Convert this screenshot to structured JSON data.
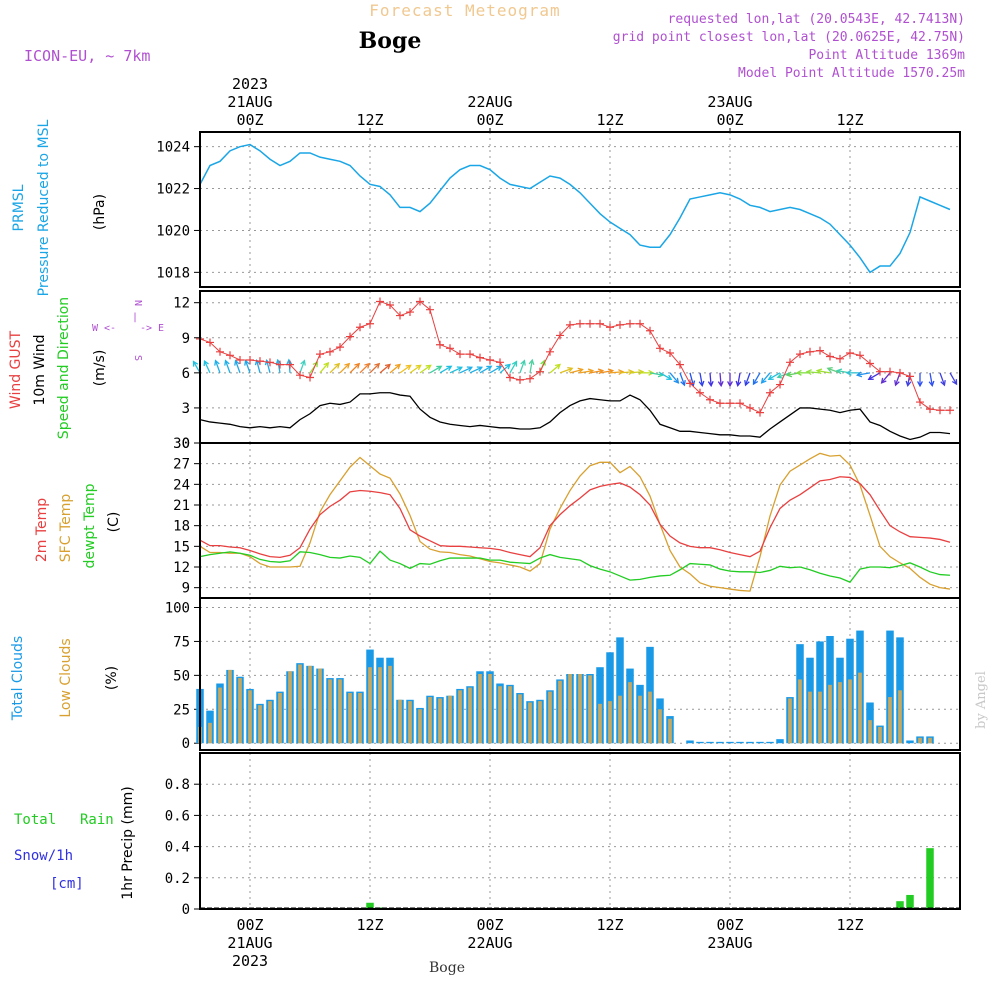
{
  "header": {
    "title": "Forecast Meteogram",
    "location": "Boge",
    "model": "ICON-EU, ~ 7km",
    "requested": "requested lon,lat (20.0543E, 42.7413N)",
    "grid_point": "grid point closest lon,lat (20.0625E, 42.75N)",
    "point_altitude": "Point Altitude 1369m",
    "model_altitude": "Model Point Altitude 1570.25m",
    "footer": "Boge",
    "watermark": "by Angel"
  },
  "time_axis": {
    "top_labels": [
      {
        "hour": 0,
        "lines": [
          "2023",
          "21AUG",
          "00Z"
        ]
      },
      {
        "hour": 12,
        "lines": [
          "12Z"
        ]
      },
      {
        "hour": 24,
        "lines": [
          "22AUG",
          "00Z"
        ]
      },
      {
        "hour": 36,
        "lines": [
          "12Z"
        ]
      },
      {
        "hour": 48,
        "lines": [
          "23AUG",
          "00Z"
        ]
      },
      {
        "hour": 60,
        "lines": [
          "12Z"
        ]
      }
    ],
    "bottom_labels": [
      {
        "hour": 0,
        "lines": [
          "00Z",
          "21AUG",
          "2023"
        ]
      },
      {
        "hour": 12,
        "lines": [
          "12Z"
        ]
      },
      {
        "hour": 24,
        "lines": [
          "00Z",
          "22AUG"
        ]
      },
      {
        "hour": 36,
        "lines": [
          "12Z"
        ]
      },
      {
        "hour": 48,
        "lines": [
          "00Z",
          "23AUG"
        ]
      },
      {
        "hour": 60,
        "lines": [
          "12Z"
        ]
      }
    ],
    "xlim": [
      -5,
      71
    ]
  },
  "panel_labels": {
    "pressure": {
      "title1": "PRMSL",
      "title2": "Pressure Reduced to MSL",
      "unit": "(hPa)"
    },
    "wind": {
      "gust": "Wind GUST",
      "wind10": "10m Wind",
      "speed_dir": "Speed and Direction",
      "unit": "(m/s)",
      "compass_w": "W <-",
      "compass_e": "-> E",
      "compass_n": "N",
      "compass_s": "S",
      "compass_mid": "|"
    },
    "temp": {
      "t2m": "2m Temp",
      "sfc": "SFC Temp",
      "dewpt": "dewpt Temp",
      "unit": "(C)"
    },
    "clouds": {
      "total": "Total Clouds",
      "low": "Low Clouds",
      "unit": "(%)"
    },
    "precip": {
      "total": "Total",
      "rain": "Rain",
      "snow": "Snow/1h",
      "snow_unit": "[cm]",
      "ylabel": "1hr Precip (mm)"
    }
  },
  "colors": {
    "pressure": "#1aa6e6",
    "gust": "#e84040",
    "wind": "#000000",
    "temp2m": "#e84040",
    "sfc": "#d8a030",
    "dewpt": "#22cc22",
    "total_clouds": "#1a9ae6",
    "low_clouds": "#c8a860",
    "rain": "#22cc22",
    "snow": "#3030e0",
    "title": "#f0c890",
    "meta": "#b050d0"
  },
  "chart_data": [
    {
      "type": "line",
      "name": "PRMSL",
      "ylim": [
        1017.3,
        1024.7
      ],
      "yticks": [
        1018,
        1020,
        1022,
        1024
      ],
      "x": [
        -5,
        -4,
        -3,
        -2,
        -1,
        0,
        1,
        2,
        3,
        4,
        5,
        6,
        7,
        8,
        9,
        10,
        11,
        12,
        13,
        14,
        15,
        16,
        17,
        18,
        19,
        20,
        21,
        22,
        23,
        24,
        25,
        26,
        27,
        28,
        29,
        30,
        31,
        32,
        33,
        34,
        35,
        36,
        37,
        38,
        39,
        40,
        41,
        42,
        43,
        44,
        45,
        46,
        47,
        48,
        49,
        50,
        51,
        52,
        53,
        54,
        55,
        56,
        57,
        58,
        59,
        60,
        61,
        62,
        63,
        64,
        65,
        66,
        67,
        68,
        69,
        70
      ],
      "values": [
        1022.2,
        1023.1,
        1023.3,
        1023.8,
        1024.0,
        1024.1,
        1023.8,
        1023.4,
        1023.1,
        1023.3,
        1023.7,
        1023.7,
        1023.5,
        1023.4,
        1023.3,
        1023.1,
        1022.6,
        1022.2,
        1022.1,
        1021.7,
        1021.1,
        1021.1,
        1020.9,
        1021.3,
        1021.9,
        1022.5,
        1022.9,
        1023.1,
        1023.1,
        1022.9,
        1022.5,
        1022.2,
        1022.1,
        1022.0,
        1022.3,
        1022.6,
        1022.5,
        1022.2,
        1021.8,
        1021.3,
        1020.8,
        1020.4,
        1020.1,
        1019.8,
        1019.3,
        1019.2,
        1019.2,
        1019.8,
        1020.6,
        1021.5,
        1021.6,
        1021.7,
        1021.8,
        1021.7,
        1021.5,
        1021.2,
        1021.1,
        1020.9,
        1021.0,
        1021.1,
        1021.0,
        1020.8,
        1020.6,
        1020.3,
        1019.8,
        1019.3,
        1018.7,
        1018.0,
        1018.3,
        1018.3,
        1018.9,
        1019.9,
        1021.6,
        1021.4,
        1021.2,
        1021.0
      ]
    },
    {
      "type": "line",
      "name": "Wind",
      "ylim": [
        0,
        13
      ],
      "yticks": [
        0,
        3,
        6,
        9,
        12
      ],
      "x": [
        -5,
        -4,
        -3,
        -2,
        -1,
        0,
        1,
        2,
        3,
        4,
        5,
        6,
        7,
        8,
        9,
        10,
        11,
        12,
        13,
        14,
        15,
        16,
        17,
        18,
        19,
        20,
        21,
        22,
        23,
        24,
        25,
        26,
        27,
        28,
        29,
        30,
        31,
        32,
        33,
        34,
        35,
        36,
        37,
        38,
        39,
        40,
        41,
        42,
        43,
        44,
        45,
        46,
        47,
        48,
        49,
        50,
        51,
        52,
        53,
        54,
        55,
        56,
        57,
        58,
        59,
        60,
        61,
        62,
        63,
        64,
        65,
        66,
        67,
        68,
        69,
        70
      ],
      "gust": [
        8.9,
        8.6,
        7.8,
        7.5,
        7.1,
        7.1,
        7.0,
        6.9,
        6.7,
        6.7,
        5.8,
        5.6,
        7.6,
        7.8,
        8.2,
        9.1,
        9.9,
        10.2,
        12.1,
        11.8,
        10.9,
        11.2,
        12.1,
        11.4,
        8.4,
        8.1,
        7.6,
        7.6,
        7.3,
        7.1,
        6.9,
        5.6,
        5.4,
        5.5,
        6.1,
        7.8,
        9.2,
        10.1,
        10.2,
        10.2,
        10.2,
        9.9,
        10.1,
        10.2,
        10.2,
        9.6,
        8.1,
        7.7,
        6.7,
        5.1,
        4.3,
        3.7,
        3.4,
        3.4,
        3.4,
        3.0,
        2.6,
        4.3,
        5.0,
        6.9,
        7.6,
        7.8,
        7.9,
        7.4,
        7.2,
        7.7,
        7.5,
        6.8,
        6.1,
        6.1,
        6.0,
        5.7,
        3.5,
        2.9,
        2.8,
        2.8
      ],
      "wind": [
        2.0,
        1.8,
        1.7,
        1.6,
        1.4,
        1.3,
        1.4,
        1.3,
        1.4,
        1.3,
        2.0,
        2.5,
        3.2,
        3.4,
        3.3,
        3.5,
        4.2,
        4.2,
        4.3,
        4.3,
        4.1,
        4.0,
        2.9,
        2.2,
        1.8,
        1.6,
        1.5,
        1.4,
        1.5,
        1.4,
        1.3,
        1.3,
        1.2,
        1.2,
        1.3,
        1.8,
        2.6,
        3.2,
        3.6,
        3.8,
        3.7,
        3.6,
        3.6,
        4.1,
        3.7,
        2.8,
        1.6,
        1.3,
        1.0,
        1.0,
        0.9,
        0.8,
        0.7,
        0.7,
        0.6,
        0.6,
        0.5,
        1.2,
        1.8,
        2.4,
        3.0,
        3.0,
        2.9,
        2.8,
        2.6,
        2.8,
        2.9,
        1.8,
        1.5,
        1.0,
        0.6,
        0.3,
        0.5,
        0.9,
        0.9,
        0.8
      ],
      "arrows": {
        "x": [
          -5,
          -4,
          -3,
          -2,
          -1,
          0,
          1,
          2,
          3,
          4,
          5,
          6,
          7,
          8,
          9,
          10,
          11,
          12,
          13,
          14,
          15,
          16,
          17,
          18,
          19,
          20,
          21,
          22,
          23,
          24,
          25,
          26,
          27,
          28,
          29,
          30,
          31,
          32,
          33,
          34,
          35,
          36,
          37,
          38,
          39,
          40,
          41,
          42,
          43,
          44,
          45,
          46,
          47,
          48,
          49,
          50,
          51,
          52,
          53,
          54,
          55,
          56,
          57,
          58,
          59,
          60,
          61,
          62,
          63,
          64,
          65,
          66,
          67,
          68,
          69,
          70
        ],
        "dir_deg": [
          150,
          155,
          160,
          160,
          160,
          160,
          165,
          165,
          170,
          175,
          200,
          215,
          220,
          225,
          225,
          225,
          225,
          225,
          230,
          230,
          235,
          235,
          235,
          240,
          240,
          245,
          245,
          245,
          240,
          240,
          230,
          210,
          200,
          190,
          200,
          230,
          250,
          255,
          260,
          260,
          260,
          265,
          265,
          265,
          270,
          280,
          300,
          320,
          340,
          345,
          350,
          355,
          355,
          0,
          10,
          20,
          30,
          40,
          60,
          70,
          80,
          90,
          95,
          100,
          110,
          100,
          90,
          80,
          60,
          40,
          20,
          10,
          0,
          350,
          340,
          330
        ],
        "colors": [
          "#20c0e0",
          "#20c0e0",
          "#20b0e8",
          "#20b0e8",
          "#20a8e8",
          "#20a8e8",
          "#20a8e8",
          "#20a8e8",
          "#20b0e8",
          "#20b0e8",
          "#40d0c0",
          "#90e040",
          "#c0e020",
          "#e0c020",
          "#f0a020",
          "#f08020",
          "#f08030",
          "#e07030",
          "#e06030",
          "#f0a020",
          "#f0c020",
          "#e0d020",
          "#c0e020",
          "#40d0a0",
          "#20c0e0",
          "#20c0e0",
          "#20b0e8",
          "#20b0e8",
          "#20b0e8",
          "#20b0e8",
          "#20c0e0",
          "#30d0c0",
          "#40d0b0",
          "#50d0a0",
          "#70e040",
          "#c0e020",
          "#e0c020",
          "#f0a020",
          "#f0a020",
          "#f09020",
          "#f09020",
          "#f0a020",
          "#e0c020",
          "#d0d020",
          "#c0e020",
          "#40d0a0",
          "#20c0e0",
          "#2090f0",
          "#2070f0",
          "#2050f0",
          "#3040e8",
          "#4030e0",
          "#6030d0",
          "#6030d0",
          "#4030e0",
          "#3040e8",
          "#2070f0",
          "#20a0f0",
          "#20c0e0",
          "#40d0b0",
          "#60d060",
          "#80e040",
          "#90e040",
          "#a0e030",
          "#60d080",
          "#40d0b0",
          "#30c0d0",
          "#2090f0",
          "#4030e0",
          "#6030d0",
          "#6030d0",
          "#4040e0",
          "#3050f0",
          "#3050f0",
          "#4040e0",
          "#4040e0"
        ]
      }
    },
    {
      "type": "line",
      "name": "Temperature",
      "ylim": [
        7.5,
        30
      ],
      "yticks": [
        9,
        12,
        15,
        18,
        21,
        24,
        27,
        30
      ],
      "x": [
        -5,
        -4,
        -3,
        -2,
        -1,
        0,
        1,
        2,
        3,
        4,
        5,
        6,
        7,
        8,
        9,
        10,
        11,
        12,
        13,
        14,
        15,
        16,
        17,
        18,
        19,
        20,
        21,
        22,
        23,
        24,
        25,
        26,
        27,
        28,
        29,
        30,
        31,
        32,
        33,
        34,
        35,
        36,
        37,
        38,
        39,
        40,
        41,
        42,
        43,
        44,
        45,
        46,
        47,
        48,
        49,
        50,
        51,
        52,
        53,
        54,
        55,
        56,
        57,
        58,
        59,
        60,
        61,
        62,
        63,
        64,
        65,
        66,
        67,
        68,
        69,
        70
      ],
      "temp2m": [
        15.9,
        15.1,
        15.1,
        14.9,
        14.8,
        14.4,
        13.9,
        13.5,
        13.4,
        13.7,
        14.8,
        17.5,
        19.6,
        20.8,
        21.7,
        22.9,
        23.1,
        23.0,
        22.8,
        22.5,
        20.5,
        17.4,
        16.5,
        15.8,
        15.1,
        15.0,
        15.0,
        14.9,
        14.8,
        14.7,
        14.5,
        14.1,
        13.8,
        13.5,
        14.8,
        18.0,
        19.6,
        20.9,
        22.0,
        23.2,
        23.7,
        24.0,
        24.2,
        23.6,
        22.5,
        21.0,
        18.2,
        16.5,
        15.5,
        15.0,
        14.8,
        14.8,
        14.5,
        14.1,
        13.8,
        13.5,
        14.3,
        17.7,
        20.5,
        21.7,
        22.5,
        23.5,
        24.5,
        24.7,
        25.1,
        25.0,
        24.1,
        22.5,
        20.2,
        18.0,
        17.1,
        16.4,
        16.3,
        16.2,
        16.0,
        15.6
      ],
      "sfc": [
        15.0,
        14.1,
        14.1,
        14.0,
        14.0,
        13.5,
        12.5,
        12.0,
        12.0,
        12.0,
        12.1,
        15.5,
        20.0,
        22.5,
        24.5,
        26.5,
        27.9,
        26.7,
        25.5,
        24.9,
        22.6,
        19.5,
        15.7,
        14.6,
        14.2,
        14.1,
        13.8,
        13.6,
        13.2,
        12.8,
        12.6,
        12.3,
        12.0,
        11.4,
        12.5,
        17.5,
        20.5,
        23.1,
        25.2,
        26.7,
        27.2,
        27.2,
        25.7,
        26.6,
        25.1,
        22.3,
        18.2,
        14.4,
        12.0,
        11.0,
        9.7,
        9.2,
        9.0,
        8.8,
        8.6,
        8.5,
        13.5,
        19.4,
        23.9,
        25.9,
        26.8,
        27.7,
        28.5,
        28.1,
        28.2,
        26.8,
        23.9,
        19.5,
        15.0,
        13.5,
        12.6,
        11.8,
        10.5,
        9.5,
        9.0,
        8.8
      ],
      "dewpt": [
        13.5,
        13.8,
        14.0,
        14.2,
        14.0,
        13.7,
        13.1,
        12.8,
        12.7,
        12.9,
        14.2,
        14.1,
        13.8,
        13.4,
        13.3,
        13.6,
        13.4,
        12.5,
        14.3,
        13.0,
        12.5,
        11.8,
        12.5,
        12.4,
        12.9,
        13.3,
        13.3,
        13.3,
        13.3,
        13.0,
        13.0,
        12.7,
        12.6,
        12.5,
        13.3,
        13.8,
        13.4,
        13.2,
        13.0,
        12.2,
        11.7,
        11.3,
        10.7,
        10.1,
        10.2,
        10.5,
        10.7,
        10.8,
        11.6,
        12.5,
        12.4,
        12.3,
        11.7,
        11.4,
        11.3,
        11.3,
        11.2,
        11.5,
        12.1,
        11.9,
        12.0,
        11.6,
        11.1,
        10.7,
        10.4,
        9.8,
        11.7,
        12.0,
        12.0,
        11.9,
        12.2,
        12.6,
        12.0,
        11.3,
        10.9,
        10.8
      ]
    },
    {
      "type": "bar",
      "name": "Clouds",
      "ylim": [
        -5,
        107
      ],
      "yticks": [
        0,
        25,
        50,
        75,
        100
      ],
      "x": [
        -5,
        -4,
        -3,
        -2,
        -1,
        0,
        1,
        2,
        3,
        4,
        5,
        6,
        7,
        8,
        9,
        10,
        11,
        12,
        13,
        14,
        15,
        16,
        17,
        18,
        19,
        20,
        21,
        22,
        23,
        24,
        25,
        26,
        27,
        28,
        29,
        30,
        31,
        32,
        33,
        34,
        35,
        36,
        37,
        38,
        39,
        40,
        41,
        42,
        43,
        44,
        45,
        46,
        47,
        48,
        49,
        50,
        51,
        52,
        53,
        54,
        55,
        56,
        57,
        58,
        59,
        60,
        61,
        62,
        63,
        64,
        65,
        66,
        67,
        68,
        69,
        70
      ],
      "total": [
        40,
        24,
        44,
        54,
        49,
        40,
        29,
        32,
        38,
        53,
        59,
        57,
        55,
        48,
        48,
        38,
        38,
        69,
        63,
        63,
        32,
        32,
        26,
        35,
        34,
        35,
        40,
        42,
        53,
        53,
        44,
        43,
        37,
        31,
        32,
        39,
        47,
        51,
        51,
        51,
        56,
        67,
        78,
        55,
        43,
        71,
        33,
        20,
        0,
        2,
        1,
        1,
        1,
        1,
        1,
        1,
        1,
        1,
        3,
        34,
        73,
        63,
        75,
        79,
        63,
        77,
        83,
        30,
        13,
        83,
        78,
        2,
        5,
        5,
        0,
        0
      ],
      "low": [
        12,
        15,
        41,
        54,
        48,
        39,
        28,
        31,
        37,
        53,
        58,
        57,
        55,
        47,
        47,
        37,
        37,
        56,
        56,
        57,
        32,
        31,
        25,
        34,
        33,
        35,
        39,
        41,
        51,
        51,
        42,
        42,
        36,
        30,
        31,
        38,
        46,
        51,
        51,
        50,
        29,
        31,
        35,
        45,
        35,
        38,
        25,
        18,
        0,
        0,
        0,
        0,
        0,
        0,
        0,
        0,
        0,
        0,
        0,
        33,
        47,
        38,
        38,
        43,
        45,
        47,
        52,
        17,
        12,
        34,
        39,
        0,
        4,
        4,
        0,
        0
      ]
    },
    {
      "type": "bar",
      "name": "Precip",
      "ylim": [
        0,
        1.0
      ],
      "yticks": [
        0,
        0.2,
        0.4,
        0.6,
        0.8
      ],
      "x": [
        12,
        13,
        65,
        66,
        68
      ],
      "rain": [
        0.04,
        0.01,
        0.05,
        0.09,
        0.39
      ],
      "snow": [
        0,
        0,
        0,
        0,
        0
      ]
    }
  ]
}
